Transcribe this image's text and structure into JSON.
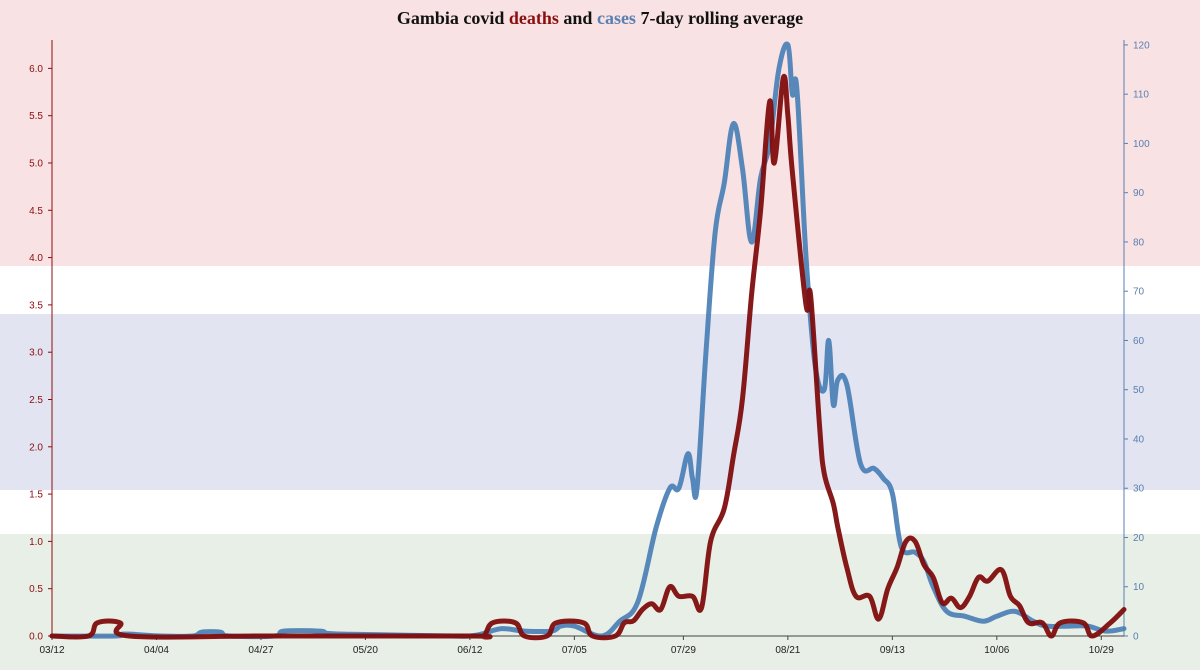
{
  "flag_colors": {
    "red": "#f8e2e4",
    "blue": "#e2e4f2",
    "green": "#e8efe6",
    "white": "#ffffff"
  },
  "title": {
    "part1": "Gambia covid ",
    "deaths_word": "deaths",
    "part2": " and ",
    "cases_word": "cases",
    "part3": " 7-day rolling average",
    "deaths_color": "#8b0e0e",
    "cases_color": "#5a7fb0"
  },
  "chart_data": {
    "type": "line",
    "x_ticks": [
      "03/12",
      "04/04",
      "04/27",
      "05/20",
      "06/12",
      "07/05",
      "07/29",
      "08/21",
      "09/13",
      "10/06",
      "10/29"
    ],
    "x_start": "03/12",
    "x_end": "11/03",
    "y_left": {
      "ticks": [
        "0.0",
        "0.5",
        "1.0",
        "1.5",
        "2.0",
        "2.5",
        "3.0",
        "3.5",
        "4.0",
        "4.5",
        "5.0",
        "5.5",
        "6.0"
      ],
      "ylim": [
        0,
        6.3
      ],
      "color": "#8b0e0e"
    },
    "y_right": {
      "ticks": [
        "0",
        "10",
        "20",
        "30",
        "40",
        "50",
        "60",
        "70",
        "80",
        "90",
        "100",
        "110",
        "120"
      ],
      "ylim": [
        0,
        121
      ],
      "color": "#5a7fb0"
    },
    "series": [
      {
        "name": "deaths",
        "axis": "left",
        "color": "#7f0d0d",
        "points": [
          [
            "03/12",
            0
          ],
          [
            "03/20",
            0
          ],
          [
            "03/22",
            0.14
          ],
          [
            "03/27",
            0.14
          ],
          [
            "03/29",
            0
          ],
          [
            "04/29",
            0
          ],
          [
            "06/12",
            0
          ],
          [
            "06/15",
            0
          ],
          [
            "06/17",
            0.14
          ],
          [
            "06/22",
            0.14
          ],
          [
            "06/24",
            0
          ],
          [
            "06/29",
            0
          ],
          [
            "07/01",
            0.14
          ],
          [
            "07/07",
            0.14
          ],
          [
            "07/09",
            0
          ],
          [
            "07/14",
            0
          ],
          [
            "07/16",
            0.14
          ],
          [
            "07/18",
            0.16
          ],
          [
            "07/20",
            0.28
          ],
          [
            "07/22",
            0.34
          ],
          [
            "07/24",
            0.28
          ],
          [
            "07/26",
            0.52
          ],
          [
            "07/28",
            0.42
          ],
          [
            "07/31",
            0.42
          ],
          [
            "08/02",
            0.3
          ],
          [
            "08/04",
            1.0
          ],
          [
            "08/07",
            1.35
          ],
          [
            "08/09",
            1.9
          ],
          [
            "08/11",
            2.5
          ],
          [
            "08/13",
            3.6
          ],
          [
            "08/15",
            4.5
          ],
          [
            "08/17",
            5.65
          ],
          [
            "08/18",
            5.0
          ],
          [
            "08/20",
            5.9
          ],
          [
            "08/21",
            5.5
          ],
          [
            "08/22",
            4.9
          ],
          [
            "08/25",
            3.5
          ],
          [
            "08/26",
            3.6
          ],
          [
            "08/28",
            2.2
          ],
          [
            "08/29",
            1.72
          ],
          [
            "08/31",
            1.4
          ],
          [
            "09/01",
            1.15
          ],
          [
            "09/03",
            0.72
          ],
          [
            "09/05",
            0.42
          ],
          [
            "09/08",
            0.42
          ],
          [
            "09/10",
            0.18
          ],
          [
            "09/12",
            0.5
          ],
          [
            "09/14",
            0.72
          ],
          [
            "09/16",
            1.0
          ],
          [
            "09/18",
            1.0
          ],
          [
            "09/20",
            0.75
          ],
          [
            "09/22",
            0.62
          ],
          [
            "09/24",
            0.35
          ],
          [
            "09/26",
            0.4
          ],
          [
            "09/28",
            0.3
          ],
          [
            "09/30",
            0.42
          ],
          [
            "10/02",
            0.62
          ],
          [
            "10/04",
            0.58
          ],
          [
            "10/07",
            0.7
          ],
          [
            "10/09",
            0.42
          ],
          [
            "10/11",
            0.32
          ],
          [
            "10/13",
            0.14
          ],
          [
            "10/16",
            0.14
          ],
          [
            "10/18",
            0
          ],
          [
            "10/20",
            0.14
          ],
          [
            "10/25",
            0.14
          ],
          [
            "10/27",
            0
          ],
          [
            "10/31",
            0.14
          ],
          [
            "11/03",
            0.28
          ]
        ]
      },
      {
        "name": "cases",
        "axis": "right",
        "color": "#4a7fb5",
        "points": [
          [
            "03/12",
            0
          ],
          [
            "03/26",
            0
          ],
          [
            "03/28",
            0.4
          ],
          [
            "04/05",
            0
          ],
          [
            "04/12",
            0
          ],
          [
            "04/14",
            0.8
          ],
          [
            "04/18",
            0.8
          ],
          [
            "04/20",
            0
          ],
          [
            "04/30",
            0
          ],
          [
            "05/02",
            1
          ],
          [
            "05/10",
            1
          ],
          [
            "05/12",
            0.5
          ],
          [
            "05/20",
            0.3
          ],
          [
            "06/08",
            0
          ],
          [
            "06/12",
            0
          ],
          [
            "06/15",
            0.5
          ],
          [
            "06/19",
            1.5
          ],
          [
            "06/24",
            1
          ],
          [
            "06/30",
            1
          ],
          [
            "07/02",
            2
          ],
          [
            "07/05",
            2
          ],
          [
            "07/11",
            0
          ],
          [
            "07/15",
            3
          ],
          [
            "07/19",
            7
          ],
          [
            "07/23",
            22
          ],
          [
            "07/26",
            30
          ],
          [
            "07/28",
            30
          ],
          [
            "07/30",
            37
          ],
          [
            "07/31",
            32
          ],
          [
            "08/01",
            30
          ],
          [
            "08/03",
            58
          ],
          [
            "08/05",
            82
          ],
          [
            "08/07",
            92
          ],
          [
            "08/09",
            104
          ],
          [
            "08/11",
            95
          ],
          [
            "08/13",
            80
          ],
          [
            "08/15",
            93
          ],
          [
            "08/17",
            100
          ],
          [
            "08/19",
            115
          ],
          [
            "08/21",
            120
          ],
          [
            "08/22",
            110
          ],
          [
            "08/23",
            111
          ],
          [
            "08/25",
            77
          ],
          [
            "08/27",
            55
          ],
          [
            "08/29",
            50
          ],
          [
            "08/30",
            60
          ],
          [
            "08/31",
            47
          ],
          [
            "09/01",
            52
          ],
          [
            "09/03",
            51
          ],
          [
            "09/06",
            35
          ],
          [
            "09/09",
            34
          ],
          [
            "09/11",
            32
          ],
          [
            "09/13",
            29
          ],
          [
            "09/15",
            18
          ],
          [
            "09/18",
            17
          ],
          [
            "09/20",
            15
          ],
          [
            "09/22",
            10
          ],
          [
            "09/25",
            5
          ],
          [
            "09/29",
            4
          ],
          [
            "10/03",
            3
          ],
          [
            "10/06",
            4
          ],
          [
            "10/10",
            5
          ],
          [
            "10/14",
            3
          ],
          [
            "10/17",
            2
          ],
          [
            "10/22",
            2
          ],
          [
            "10/26",
            2
          ],
          [
            "10/30",
            1
          ],
          [
            "11/03",
            1.5
          ]
        ]
      }
    ],
    "grid": false,
    "legend": "none"
  }
}
